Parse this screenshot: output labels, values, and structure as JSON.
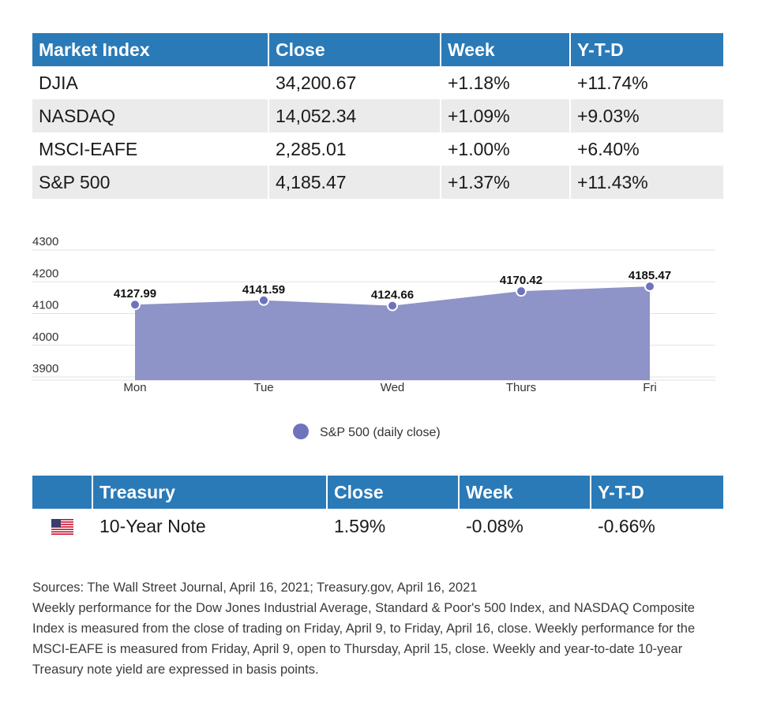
{
  "market_table": {
    "headers": [
      "Market Index",
      "Close",
      "Week",
      "Y-T-D"
    ],
    "rows": [
      {
        "name": "DJIA",
        "close": "34,200.67",
        "week": "+1.18%",
        "ytd": "+11.74%"
      },
      {
        "name": "NASDAQ",
        "close": "14,052.34",
        "week": "+1.09%",
        "ytd": "+9.03%"
      },
      {
        "name": "MSCI-EAFE",
        "close": "2,285.01",
        "week": "+1.00%",
        "ytd": "+6.40%"
      },
      {
        "name": "S&P 500",
        "close": "4,185.47",
        "week": "+1.37%",
        "ytd": "+11.43%"
      }
    ]
  },
  "chart_data": {
    "type": "area",
    "categories": [
      "Mon",
      "Tue",
      "Wed",
      "Thurs",
      "Fri"
    ],
    "series": [
      {
        "name": "S&P 500 (daily close)",
        "values": [
          4127.99,
          4141.59,
          4124.66,
          4170.42,
          4185.47
        ],
        "color": "#8e93c8"
      }
    ],
    "data_labels": [
      "4127.99",
      "4141.59",
      "4124.66",
      "4170.42",
      "4185.47"
    ],
    "y_ticks": [
      "4300",
      "4200",
      "4100",
      "4000",
      "3900"
    ],
    "ylim": [
      3900,
      4300
    ],
    "grid": true,
    "legend_position": "bottom",
    "marker_color": "#6e73bd",
    "title": "",
    "xlabel": "",
    "ylabel": ""
  },
  "treasury_table": {
    "headers": [
      "",
      "Treasury",
      "Close",
      "Week",
      "Y-T-D"
    ],
    "rows": [
      {
        "icon": "us-flag-icon",
        "name": "10-Year Note",
        "close": "1.59%",
        "week": "-0.08%",
        "ytd": "-0.66%"
      }
    ]
  },
  "notes": {
    "sources": "Sources: The Wall Street Journal, April 16, 2021; Treasury.gov, April 16, 2021",
    "body": "Weekly performance for the Dow Jones Industrial Average, Standard & Poor's 500 Index, and NASDAQ Composite Index is measured from the close of trading on Friday, April 9, to Friday, April 16, close. Weekly performance for the MSCI-EAFE is measured from Friday, April 9, open to Thursday, April 15, close. Weekly and year-to-date 10-year Treasury note yield are expressed in basis points."
  },
  "colors": {
    "header": "#2a7ab8",
    "stripe": "#ebebeb",
    "area": "#8e93c8"
  }
}
